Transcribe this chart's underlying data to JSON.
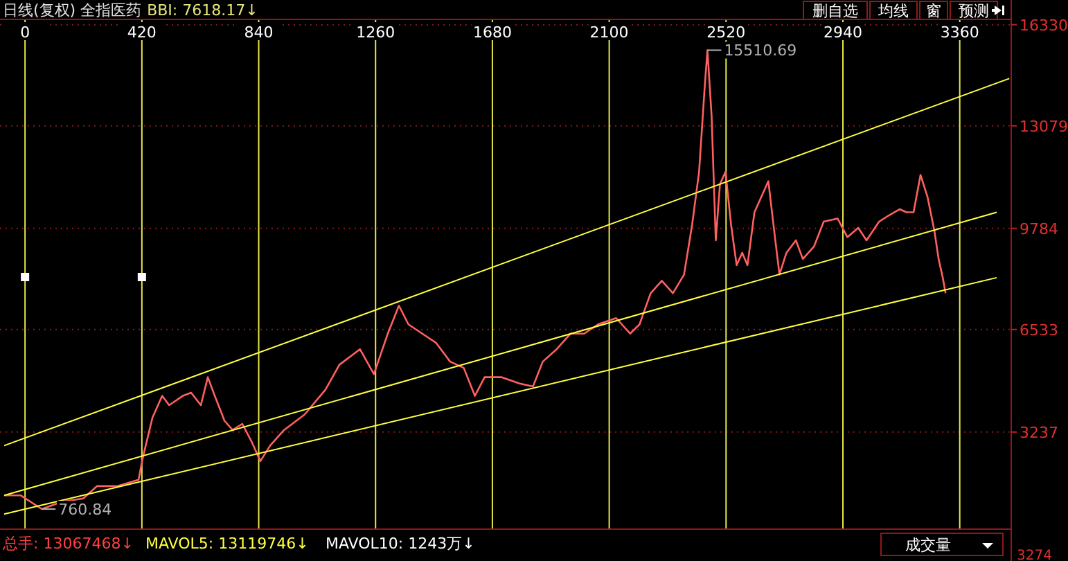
{
  "chart_data": {
    "type": "line",
    "title": "日线(复权) 全指医药",
    "subtitle": "BBI: 7618.17↓",
    "x": [
      -75,
      -15,
      60,
      134,
      209,
      259,
      333,
      408,
      423,
      458,
      493,
      518,
      567,
      597,
      632,
      657,
      682,
      717,
      746,
      781,
      816,
      846,
      881,
      931,
      1005,
      1080,
      1130,
      1204,
      1254,
      1304,
      1344,
      1378,
      1428,
      1478,
      1528,
      1577,
      1617,
      1652,
      1712,
      1776,
      1826,
      1861,
      1911,
      1961,
      2010,
      2060,
      2125,
      2175,
      2209,
      2249,
      2289,
      2329,
      2369,
      2398,
      2423,
      2443,
      2453,
      2468,
      2483,
      2498,
      2518,
      2538,
      2558,
      2578,
      2597,
      2622,
      2647,
      2672,
      2697,
      2712,
      2737,
      2771,
      2796,
      2836,
      2871,
      2921,
      2956,
      2995,
      3025,
      3070,
      3105,
      3144,
      3169,
      3194,
      3219,
      3244,
      3269,
      3284,
      3299,
      3309
    ],
    "series": [
      {
        "color": "#ff6060",
        "values": [
          1200,
          1200,
          760.84,
          1000,
          1100,
          1500,
          1500,
          1700,
          2400,
          3700,
          4400,
          4100,
          4400,
          4500,
          4100,
          5000,
          4400,
          3600,
          3300,
          3500,
          2900,
          2300,
          2800,
          3300,
          3800,
          4600,
          5400,
          5900,
          5100,
          6400,
          7300,
          6700,
          6400,
          6100,
          5500,
          5300,
          4400,
          5000,
          5000,
          4800,
          4700,
          5500,
          5900,
          6400,
          6400,
          6700,
          6900,
          6400,
          6700,
          7700,
          8100,
          7700,
          8300,
          9900,
          11600,
          14300,
          15510.69,
          13400,
          9400,
          11200,
          11600,
          9900,
          8600,
          9000,
          8600,
          10300,
          10800,
          11300,
          9400,
          8300,
          9000,
          9400,
          8800,
          9200,
          10000,
          10100,
          9500,
          9800,
          9400,
          10000,
          10200,
          10400,
          10300,
          10300,
          11500,
          10800,
          9700,
          8800,
          8200,
          7700
        ]
      },
      {
        "type": "line",
        "color": "#ffff40",
        "x": [
          -75,
          3538
        ],
        "values": [
          2800,
          14600
        ]
      },
      {
        "type": "line",
        "color": "#ffff40",
        "x": [
          -75,
          3493
        ],
        "values": [
          1200,
          10300
        ]
      },
      {
        "type": "line",
        "color": "#ffff40",
        "x": [
          -75,
          3493
        ],
        "values": [
          600,
          8200
        ]
      }
    ],
    "xlim": [
      -90,
      3545
    ],
    "xticks": [
      0,
      420,
      840,
      1260,
      1680,
      2100,
      2520,
      2940,
      3360
    ],
    "ylim": [
      116,
      16500
    ],
    "yticks": [
      3237,
      6533,
      9784,
      13079,
      16330
    ],
    "grid": true,
    "marker": "none",
    "line_style": "solid",
    "annotations": [
      {
        "text": "15510.69",
        "x": 2453,
        "y": 15510.69
      },
      {
        "text": "760.84",
        "x": 60,
        "y": 760.84
      },
      "删自选",
      "均线",
      "窗",
      "预测",
      "总手: 13067468↓",
      "MAVOL5: 13119746↓",
      "MAVOL10: 1243万↓",
      "成交量",
      "3274"
    ]
  }
}
